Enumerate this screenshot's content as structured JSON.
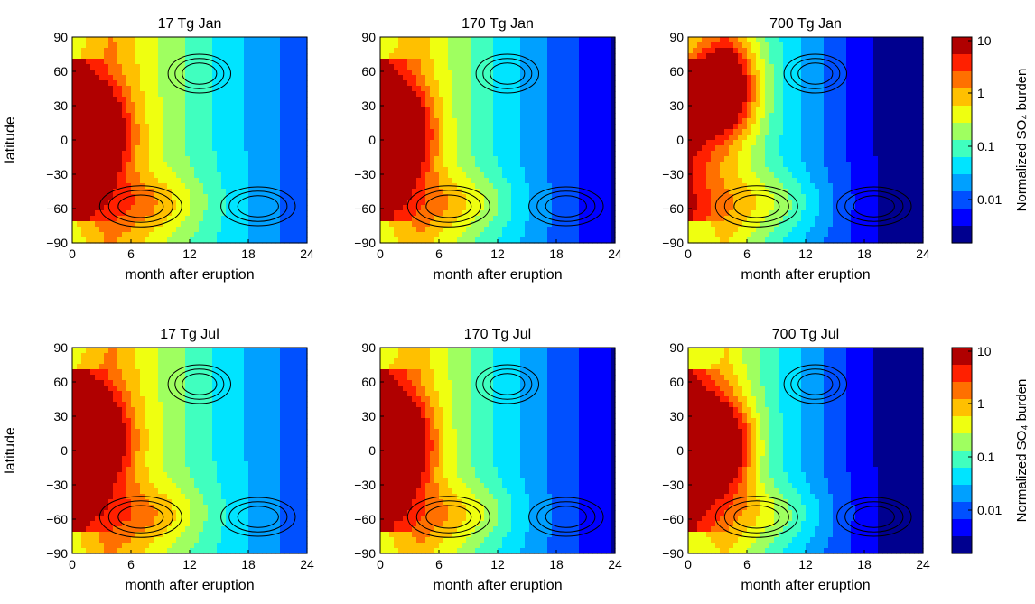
{
  "figure": {
    "colorbar_label": "Normalized SO₄ burden",
    "colorbar_ticks": [
      "10",
      "1",
      "0.1",
      "0.01"
    ]
  },
  "colors": {
    "scale": [
      "#00008f",
      "#0000ff",
      "#0050ff",
      "#00a0ff",
      "#00e4ff",
      "#40ffbf",
      "#9fff60",
      "#efff10",
      "#ffc000",
      "#ff7000",
      "#ff2000",
      "#b00000"
    ]
  },
  "chart_data": [
    {
      "type": "heatmap",
      "title": "17 Tg Jan",
      "xlabel": "month after eruption",
      "ylabel": "latitude",
      "xlim": [
        0,
        24
      ],
      "ylim": [
        -90,
        90
      ],
      "xticks": [
        "0",
        "6",
        "12",
        "18",
        "24"
      ],
      "yticks": [
        "90",
        "60",
        "30",
        "0",
        "−30",
        "−60",
        "−90"
      ],
      "peak_lat": 5,
      "strength": 1.0,
      "core_month": 2,
      "season": "jan"
    },
    {
      "type": "heatmap",
      "title": "170 Tg Jan",
      "xlabel": "month after eruption",
      "ylabel": "",
      "xlim": [
        0,
        24
      ],
      "ylim": [
        -90,
        90
      ],
      "xticks": [
        "0",
        "6",
        "12",
        "18",
        "24"
      ],
      "yticks": [
        "90",
        "60",
        "30",
        "0",
        "−30",
        "−60",
        "−90"
      ],
      "peak_lat": 5,
      "strength": 0.7,
      "core_month": 1.5,
      "season": "jan"
    },
    {
      "type": "heatmap",
      "title": "700 Tg Jan",
      "xlabel": "month after eruption",
      "ylabel": "",
      "xlim": [
        0,
        24
      ],
      "ylim": [
        -90,
        90
      ],
      "xticks": [
        "0",
        "6",
        "12",
        "18",
        "24"
      ],
      "yticks": [
        "90",
        "60",
        "30",
        "0",
        "−30",
        "−60",
        "−90"
      ],
      "peak_lat": 45,
      "strength": 0.4,
      "core_month": 3.5,
      "season": "jan"
    },
    {
      "type": "heatmap",
      "title": "17 Tg Jul",
      "xlabel": "month after eruption",
      "ylabel": "latitude",
      "xlim": [
        0,
        24
      ],
      "ylim": [
        -90,
        90
      ],
      "xticks": [
        "0",
        "6",
        "12",
        "18",
        "24"
      ],
      "yticks": [
        "90",
        "60",
        "30",
        "0",
        "−30",
        "−60",
        "−90"
      ],
      "peak_lat": 10,
      "strength": 1.0,
      "core_month": 2,
      "season": "jul"
    },
    {
      "type": "heatmap",
      "title": "170 Tg Jul",
      "xlabel": "month after eruption",
      "ylabel": "",
      "xlim": [
        0,
        24
      ],
      "ylim": [
        -90,
        90
      ],
      "xticks": [
        "0",
        "6",
        "12",
        "18",
        "24"
      ],
      "yticks": [
        "90",
        "60",
        "30",
        "0",
        "−30",
        "−60",
        "−90"
      ],
      "peak_lat": 5,
      "strength": 0.7,
      "core_month": 1.5,
      "season": "jul"
    },
    {
      "type": "heatmap",
      "title": "700 Tg Jul",
      "xlabel": "month after eruption",
      "ylabel": "",
      "xlim": [
        0,
        24
      ],
      "ylim": [
        -90,
        90
      ],
      "xticks": [
        "0",
        "6",
        "12",
        "18",
        "24"
      ],
      "yticks": [
        "90",
        "60",
        "30",
        "0",
        "−30",
        "−60",
        "−90"
      ],
      "peak_lat": 5,
      "strength": 0.4,
      "core_month": 3,
      "season": "jul"
    }
  ]
}
